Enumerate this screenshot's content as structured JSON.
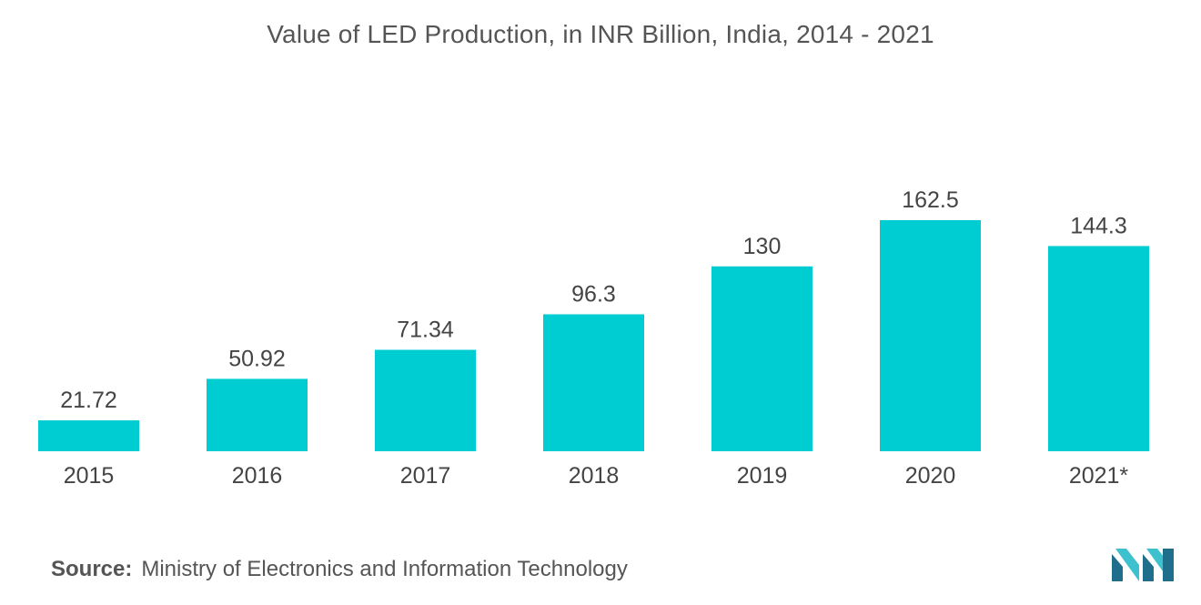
{
  "title": "Value of LED Production, in INR Billion, India, 2014 - 2021",
  "source": {
    "key": "Source:",
    "value": "Ministry of Electronics and Information Technology"
  },
  "logo_icon": "mordor-intelligence-logo",
  "colors": {
    "bar": "#00CDD1",
    "text": "#444444",
    "logo_dark": "#1F6E8C",
    "logo_light": "#3EC1CF"
  },
  "chart_data": {
    "type": "bar",
    "title": "Value of LED Production, in INR Billion, India, 2014 - 2021",
    "categories": [
      "2015",
      "2016",
      "2017",
      "2018",
      "2019",
      "2020",
      "2021*"
    ],
    "values": [
      21.72,
      50.92,
      71.34,
      96.3,
      130,
      162.5,
      144.3
    ],
    "value_labels": [
      "21.72",
      "50.92",
      "71.34",
      "96.3",
      "130",
      "162.5",
      "144.3"
    ],
    "xlabel": "",
    "ylabel": "",
    "ylim": [
      0,
      162.5
    ],
    "grid": false,
    "legend": "none"
  }
}
